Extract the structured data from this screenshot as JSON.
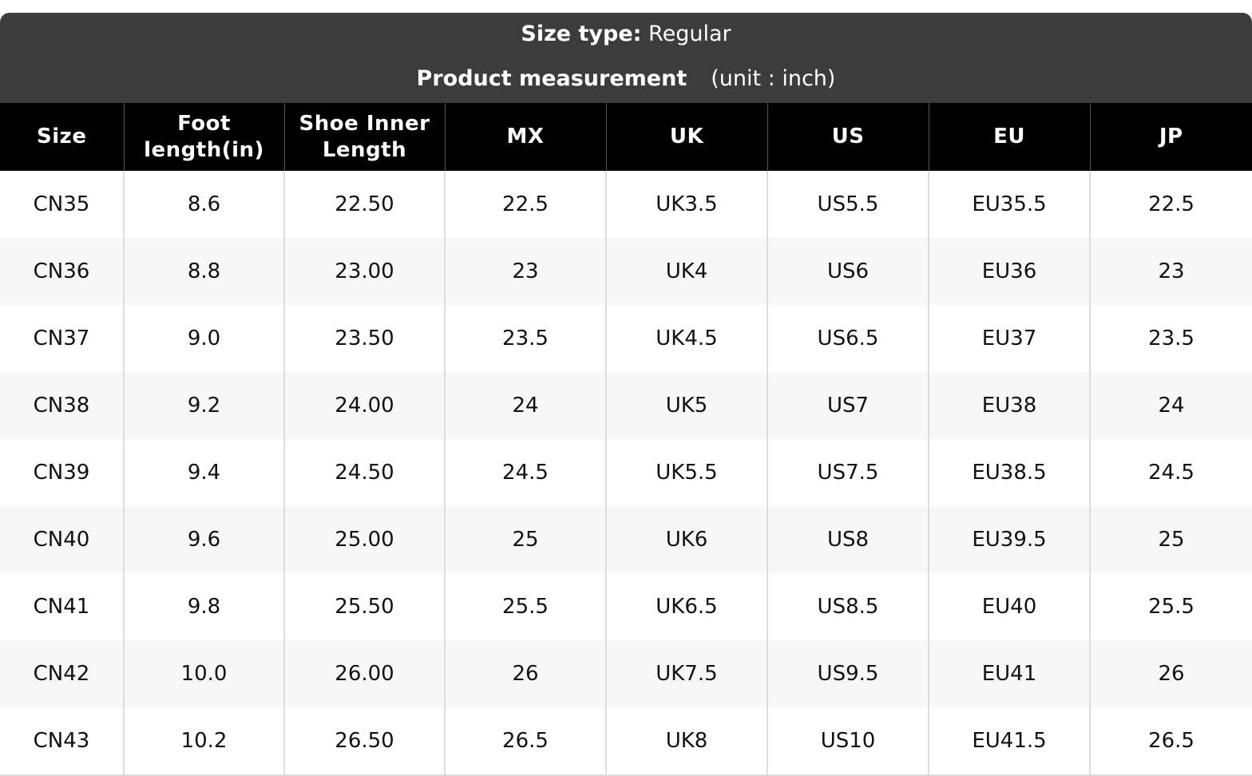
{
  "header": {
    "size_type_label": "Size type:",
    "size_type": "Regular",
    "measurement_label": "Product measurement",
    "unit": "(unit : inch)"
  },
  "table": {
    "columns": [
      "Size",
      "Foot length(in)",
      "Shoe Inner Length",
      "MX",
      "UK",
      "US",
      "EU",
      "JP"
    ],
    "rows": [
      [
        "CN35",
        "8.6",
        "22.50",
        "22.5",
        "UK3.5",
        "US5.5",
        "EU35.5",
        "22.5"
      ],
      [
        "CN36",
        "8.8",
        "23.00",
        "23",
        "UK4",
        "US6",
        "EU36",
        "23"
      ],
      [
        "CN37",
        "9.0",
        "23.50",
        "23.5",
        "UK4.5",
        "US6.5",
        "EU37",
        "23.5"
      ],
      [
        "CN38",
        "9.2",
        "24.00",
        "24",
        "UK5",
        "US7",
        "EU38",
        "24"
      ],
      [
        "CN39",
        "9.4",
        "24.50",
        "24.5",
        "UK5.5",
        "US7.5",
        "EU38.5",
        "24.5"
      ],
      [
        "CN40",
        "9.6",
        "25.00",
        "25",
        "UK6",
        "US8",
        "EU39.5",
        "25"
      ],
      [
        "CN41",
        "9.8",
        "25.50",
        "25.5",
        "UK6.5",
        "US8.5",
        "EU40",
        "25.5"
      ],
      [
        "CN42",
        "10.0",
        "26.00",
        "26",
        "UK7.5",
        "US9.5",
        "EU41",
        "26"
      ],
      [
        "CN43",
        "10.2",
        "26.50",
        "26.5",
        "UK8",
        "US10",
        "EU41.5",
        "26.5"
      ]
    ]
  }
}
